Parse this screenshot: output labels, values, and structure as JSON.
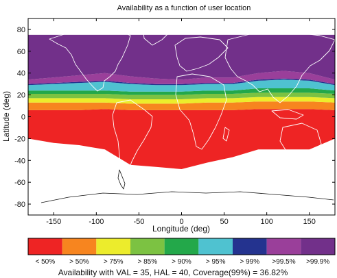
{
  "chart_data": {
    "type": "heatmap",
    "title": "Availability as a function of user location",
    "xlabel": "Longitude (deg)",
    "ylabel": "Latitude (deg)",
    "xlim": [
      -180,
      180
    ],
    "ylim": [
      -90,
      90
    ],
    "x_ticks": [
      -150,
      -100,
      -50,
      0,
      50,
      100,
      150
    ],
    "y_ticks": [
      -80,
      -60,
      -40,
      -20,
      0,
      20,
      40,
      60,
      80
    ],
    "grid": false,
    "colorbar": {
      "placement": "bottom",
      "levels": [
        {
          "label": "< 50%",
          "color": "#ee2424"
        },
        {
          "label": "> 50%",
          "color": "#f7851f"
        },
        {
          "label": "> 75%",
          "color": "#ecec2c"
        },
        {
          "label": "> 85%",
          "color": "#7cc242"
        },
        {
          "label": "> 90%",
          "color": "#23a84a"
        },
        {
          "label": "> 95%",
          "color": "#4fc2d0"
        },
        {
          "label": "> 99%",
          "color": "#24338f"
        },
        {
          "label": ">99.5%",
          "color": "#9a3f9a"
        },
        {
          "label": ">99.9%",
          "color": "#72308a"
        }
      ]
    },
    "caption": "Availability with VAL = 35,  HAL = 40, Coverage(99%) = 36.82%",
    "band_boundaries_lat": {
      "lon": [
        -180,
        -150,
        -120,
        -90,
        -60,
        -30,
        0,
        30,
        60,
        90,
        120,
        150,
        180
      ],
      "level_1": [
        6,
        6,
        6,
        7,
        6,
        6,
        6,
        6,
        6,
        7,
        7,
        7,
        6
      ],
      "level_2": [
        13,
        13,
        13,
        13,
        12,
        12,
        12,
        13,
        13,
        14,
        14,
        14,
        13
      ],
      "level_3": [
        17,
        17,
        17,
        17,
        16,
        16,
        16,
        17,
        17,
        18,
        18,
        18,
        17
      ],
      "level_4": [
        21,
        21,
        21,
        21,
        20,
        20,
        20,
        21,
        21,
        22,
        22,
        22,
        21
      ],
      "level_5": [
        24,
        24,
        24,
        24,
        23,
        23,
        23,
        24,
        24,
        26,
        26,
        26,
        24
      ],
      "level_6": [
        29,
        30,
        31,
        32,
        30,
        29,
        29,
        30,
        30,
        33,
        34,
        33,
        29
      ],
      "level_7": [
        30,
        31,
        32,
        33,
        31,
        30,
        30,
        31,
        31,
        34,
        35,
        34,
        30
      ],
      "level_8": [
        34,
        36,
        38,
        40,
        37,
        35,
        34,
        36,
        36,
        40,
        42,
        40,
        34
      ]
    },
    "data_south_edge_lat": {
      "lon": [
        -180,
        -150,
        -120,
        -90,
        -60,
        -30,
        0,
        30,
        60,
        90,
        120,
        150,
        180
      ],
      "lat": [
        -20,
        -24,
        -26,
        -30,
        -44,
        -46,
        -48,
        -42,
        -37,
        -30,
        -30,
        -30,
        -20
      ]
    },
    "data_north_edge_lat": 75
  }
}
